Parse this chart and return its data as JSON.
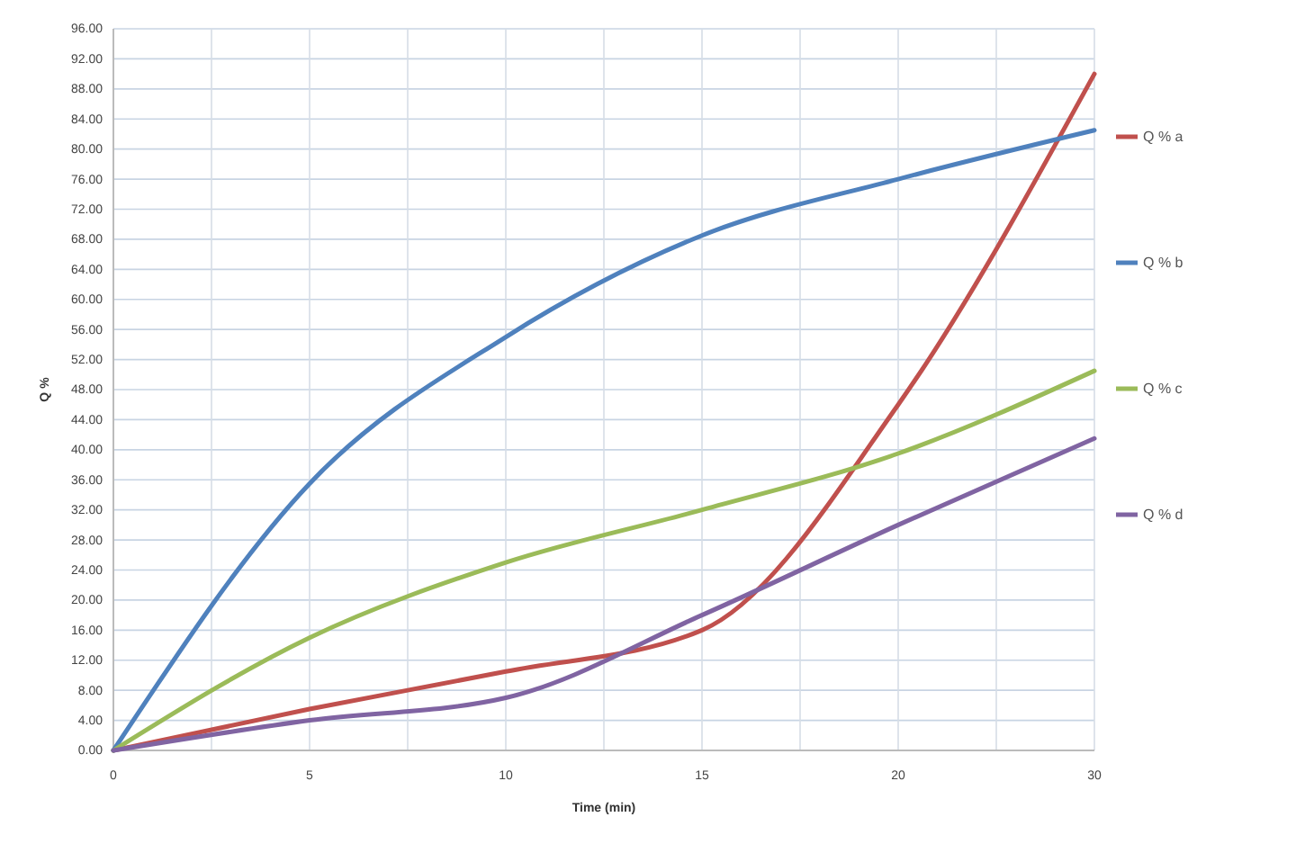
{
  "chart_data": {
    "type": "line",
    "xlabel": "Time (min)",
    "ylabel": "Q %",
    "categories": [
      "0",
      "5",
      "10",
      "15",
      "20",
      "30"
    ],
    "series": [
      {
        "name": "Q % a",
        "color": "#c0504d",
        "values": [
          0,
          5.5,
          10.5,
          16,
          46,
          90
        ]
      },
      {
        "name": "Q % b",
        "color": "#4f81bd",
        "values": [
          0,
          35.5,
          55,
          68.5,
          76,
          82.5
        ]
      },
      {
        "name": "Q % c",
        "color": "#9bbb59",
        "values": [
          0,
          15,
          25,
          32,
          39.5,
          50.5
        ]
      },
      {
        "name": "Q % d",
        "color": "#8064a2",
        "values": [
          0,
          4,
          7,
          18,
          30,
          41.5
        ]
      }
    ],
    "ylim": [
      0,
      96
    ],
    "yticks": [
      {
        "value": 0,
        "label": "0.00"
      },
      {
        "value": 4,
        "label": "4.00"
      },
      {
        "value": 8,
        "label": "8.00"
      },
      {
        "value": 12,
        "label": "12.00"
      },
      {
        "value": 16,
        "label": "16.00"
      },
      {
        "value": 20,
        "label": "20.00"
      },
      {
        "value": 24,
        "label": "24.00"
      },
      {
        "value": 28,
        "label": "28.00"
      },
      {
        "value": 32,
        "label": "32.00"
      },
      {
        "value": 36,
        "label": "36.00"
      },
      {
        "value": 40,
        "label": "40.00"
      },
      {
        "value": 44,
        "label": "44.00"
      },
      {
        "value": 48,
        "label": "48.00"
      },
      {
        "value": 52,
        "label": "52.00"
      },
      {
        "value": 56,
        "label": "56.00"
      },
      {
        "value": 60,
        "label": "60.00"
      },
      {
        "value": 64,
        "label": "64.00"
      },
      {
        "value": 68,
        "label": "68.00"
      },
      {
        "value": 72,
        "label": "72.00"
      },
      {
        "value": 76,
        "label": "76.00"
      },
      {
        "value": 80,
        "label": "80.00"
      },
      {
        "value": 84,
        "label": "84.00"
      },
      {
        "value": 88,
        "label": "88.00"
      },
      {
        "value": 92,
        "label": "92.00"
      },
      {
        "value": 96,
        "label": "96.00"
      }
    ],
    "grid": true,
    "legend": "right",
    "marker": "none",
    "line_style": "solid"
  }
}
